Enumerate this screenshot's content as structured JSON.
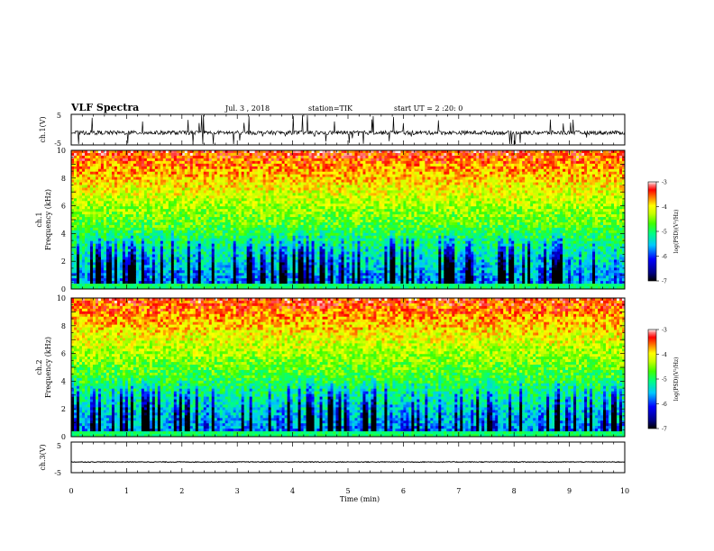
{
  "header": {
    "title": "VLF Spectra",
    "date": "Jul. 3 , 2018",
    "station": "station=TIK",
    "start": "start UT = 2 :20: 0"
  },
  "chart_data": [
    {
      "type": "line",
      "name": "ch1-waveform",
      "ylabel": "ch.1(V)",
      "ylim": [
        -5,
        5
      ],
      "yticks": [
        "5",
        "-5"
      ],
      "xlim": [
        0,
        10
      ],
      "baseline": 0
    },
    {
      "type": "heatmap",
      "name": "ch1-spectrogram",
      "ylabel_line1": "ch.1",
      "ylabel_line2": "Frequency (kHz)",
      "ylim": [
        0,
        10
      ],
      "yticks": [
        "0",
        "2",
        "4",
        "6",
        "8",
        "10"
      ],
      "xlim": [
        0,
        10
      ],
      "colorbar": {
        "label": "log(PSD)(V²/Hz)",
        "min": -7,
        "max": -3,
        "ticks": [
          "-3",
          "-4",
          "-5",
          "-6",
          "-7"
        ]
      }
    },
    {
      "type": "heatmap",
      "name": "ch2-spectrogram",
      "ylabel_line1": "ch.2",
      "ylabel_line2": "Frequency (kHz)",
      "ylim": [
        0,
        10
      ],
      "yticks": [
        "0",
        "2",
        "4",
        "6",
        "8",
        "10"
      ],
      "xlim": [
        0,
        10
      ],
      "colorbar": {
        "label": "log(PSD)(V²/Hz)",
        "min": -7,
        "max": -3,
        "ticks": [
          "-3",
          "-4",
          "-5",
          "-6",
          "-7"
        ]
      }
    },
    {
      "type": "line",
      "name": "ch3-waveform",
      "ylabel": "ch.3(V)",
      "ylim": [
        -5,
        5
      ],
      "yticks": [
        "5",
        "-5"
      ],
      "xlim": [
        0,
        10
      ],
      "baseline": 0,
      "xlabel": "Time (min)",
      "xticks": [
        "0",
        "1",
        "2",
        "3",
        "4",
        "5",
        "6",
        "7",
        "8",
        "9",
        "10"
      ]
    }
  ]
}
